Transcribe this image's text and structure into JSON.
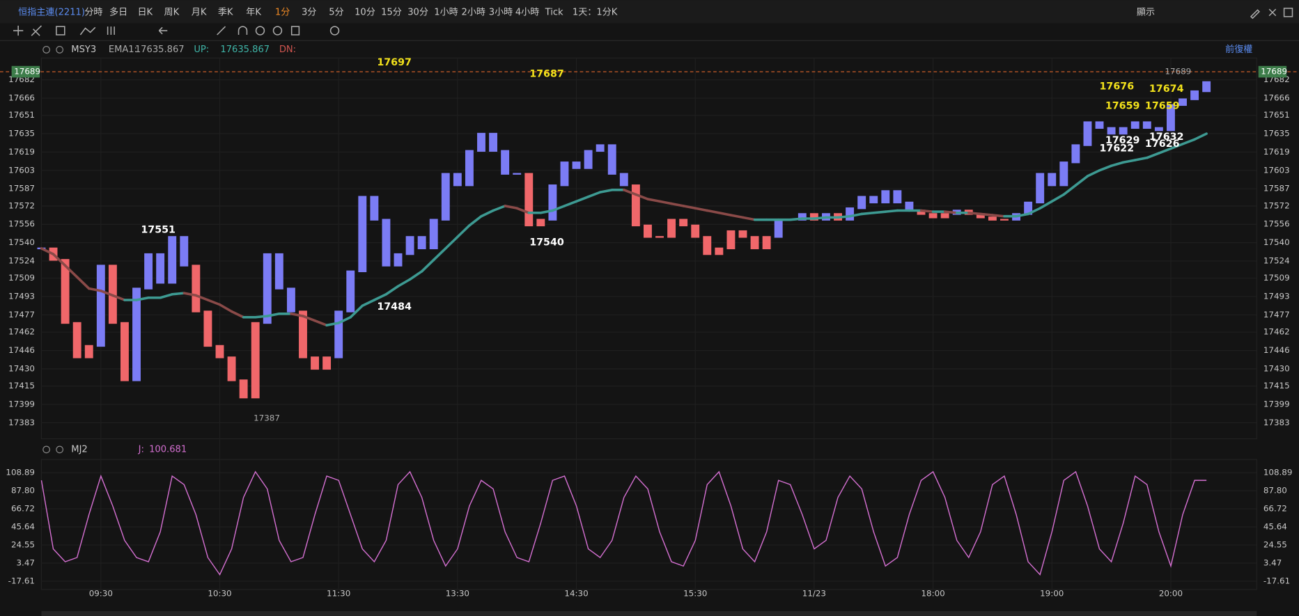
{
  "toolbar": {
    "symbol": "恒指主連(2211)",
    "periods": [
      "分時",
      "多日",
      "日K",
      "周K",
      "月K",
      "季K",
      "年K",
      "1分",
      "3分",
      "5分",
      "10分",
      "15分",
      "30分",
      "1小時",
      "2小時",
      "3小時",
      "4小時",
      "Tick"
    ],
    "display": "1天：1分K",
    "right": "顯示",
    "adjust": "前復權"
  },
  "last_price": 17689,
  "chart_data": [
    {
      "type": "candle-line",
      "title": "MSY3",
      "legend_items": [
        {
          "label": "EMA1:",
          "value": "17635.867"
        },
        {
          "label": "UP:",
          "value": "17635.867"
        },
        {
          "label": "DN:"
        }
      ],
      "ylim": [
        17369,
        17701
      ],
      "yticks": [
        17682,
        17666,
        17651,
        17635,
        17619,
        17603,
        17587,
        17572,
        17556,
        17540,
        17524,
        17509,
        17493,
        17477,
        17462,
        17446,
        17430,
        17415,
        17399,
        17383
      ],
      "series": [
        {
          "color": "#7b7cf5",
          "down_color": "#f0676a",
          "values": [
            17535,
            17525,
            17470,
            17440,
            17450,
            17520,
            17470,
            17420,
            17500,
            17530,
            17505,
            17545,
            17520,
            17480,
            17450,
            17440,
            17420,
            17405,
            17470,
            17530,
            17500,
            17480,
            17440,
            17430,
            17440,
            17480,
            17515,
            17580,
            17560,
            17520,
            17530,
            17545,
            17535,
            17560,
            17600,
            17590,
            17620,
            17635,
            17620,
            17600,
            17600,
            17555,
            17560,
            17590,
            17610,
            17605,
            17620,
            17625,
            17600,
            17590,
            17555,
            17545,
            17545,
            17560,
            17555,
            17545,
            17530,
            17535,
            17550,
            17545,
            17535,
            17545,
            17560,
            17560,
            17565,
            17560,
            17565,
            17560,
            17570,
            17580,
            17575,
            17585,
            17575,
            17568,
            17565,
            17562,
            17565,
            17568,
            17565,
            17562,
            17560,
            17560,
            17565,
            17575,
            17600,
            17590,
            17610,
            17625,
            17645,
            17640,
            17635,
            17640,
            17645,
            17640,
            17638,
            17660,
            17665,
            17672,
            17680
          ]
        },
        {
          "color": "#3d9a92",
          "down_color": "#8a4a48",
          "values": [
            17535,
            17530,
            17520,
            17510,
            17500,
            17498,
            17494,
            17490,
            17490,
            17492,
            17492,
            17495,
            17496,
            17494,
            17490,
            17486,
            17480,
            17475,
            17475,
            17476,
            17478,
            17478,
            17476,
            17472,
            17468,
            17470,
            17475,
            17485,
            17490,
            17495,
            17502,
            17508,
            17515,
            17525,
            17535,
            17545,
            17555,
            17563,
            17568,
            17572,
            17570,
            17566,
            17566,
            17568,
            17572,
            17576,
            17580,
            17584,
            17586,
            17586,
            17582,
            17578,
            17576,
            17574,
            17572,
            17570,
            17568,
            17566,
            17564,
            17562,
            17560,
            17560,
            17560,
            17560,
            17561,
            17561,
            17562,
            17562,
            17563,
            17565,
            17566,
            17567,
            17568,
            17568,
            17568,
            17567,
            17567,
            17566,
            17566,
            17565,
            17564,
            17563,
            17563,
            17565,
            17570,
            17576,
            17582,
            17590,
            17598,
            17603,
            17607,
            17610,
            17612,
            17614,
            17618,
            17622,
            17626,
            17630,
            17635
          ]
        }
      ],
      "annotations": [
        17697,
        17687,
        17551,
        17484,
        17540,
        17387,
        17689,
        17676,
        17674,
        17659,
        17659,
        17629,
        17622,
        17632,
        17626
      ]
    },
    {
      "type": "line",
      "title": "MJ2",
      "legend_items": [
        {
          "label": "J:",
          "value": "100.681"
        }
      ],
      "ylim": [
        -27.3,
        124.3
      ],
      "yticks": [
        108.89,
        {
          "value": 87.8,
          "label": "87.80"
        },
        66.72,
        45.64,
        24.55,
        3.47,
        -17.61
      ],
      "categories": [
        null,
        null,
        null,
        null,
        null,
        "09:30",
        null,
        null,
        null,
        null,
        null,
        null,
        null,
        null,
        null,
        "10:30",
        null,
        null,
        null,
        null,
        null,
        null,
        null,
        null,
        null,
        "11:30",
        null,
        null,
        null,
        null,
        null,
        null,
        null,
        null,
        null,
        "13:30",
        null,
        null,
        null,
        null,
        null,
        null,
        null,
        null,
        null,
        "14:30",
        null,
        null,
        null,
        null,
        null,
        null,
        null,
        null,
        null,
        "15:30",
        null,
        null,
        null,
        null,
        null,
        null,
        null,
        null,
        null,
        "11/23",
        null,
        null,
        null,
        null,
        null,
        null,
        null,
        null,
        null,
        "18:00",
        null,
        null,
        null,
        null,
        null,
        null,
        null,
        null,
        null,
        "19:00",
        null,
        null,
        null,
        null,
        null,
        null,
        null,
        null,
        null,
        "20:00",
        null,
        null,
        null
      ],
      "series": [
        {
          "color": "#d36fd0",
          "values": [
            100,
            20,
            5,
            10,
            60,
            105,
            70,
            30,
            10,
            5,
            40,
            105,
            95,
            60,
            10,
            -10,
            20,
            80,
            110,
            90,
            30,
            5,
            10,
            60,
            105,
            100,
            60,
            20,
            5,
            30,
            95,
            110,
            80,
            30,
            0,
            20,
            70,
            100,
            90,
            40,
            10,
            5,
            50,
            100,
            105,
            70,
            20,
            10,
            30,
            80,
            105,
            90,
            40,
            5,
            0,
            30,
            95,
            110,
            70,
            20,
            5,
            40,
            100,
            95,
            60,
            20,
            30,
            80,
            105,
            90,
            40,
            0,
            10,
            60,
            100,
            110,
            80,
            30,
            10,
            40,
            95,
            105,
            60,
            5,
            -10,
            40,
            100,
            110,
            70,
            20,
            5,
            50,
            105,
            95,
            40,
            0,
            60,
            100,
            100
          ]
        }
      ]
    }
  ]
}
